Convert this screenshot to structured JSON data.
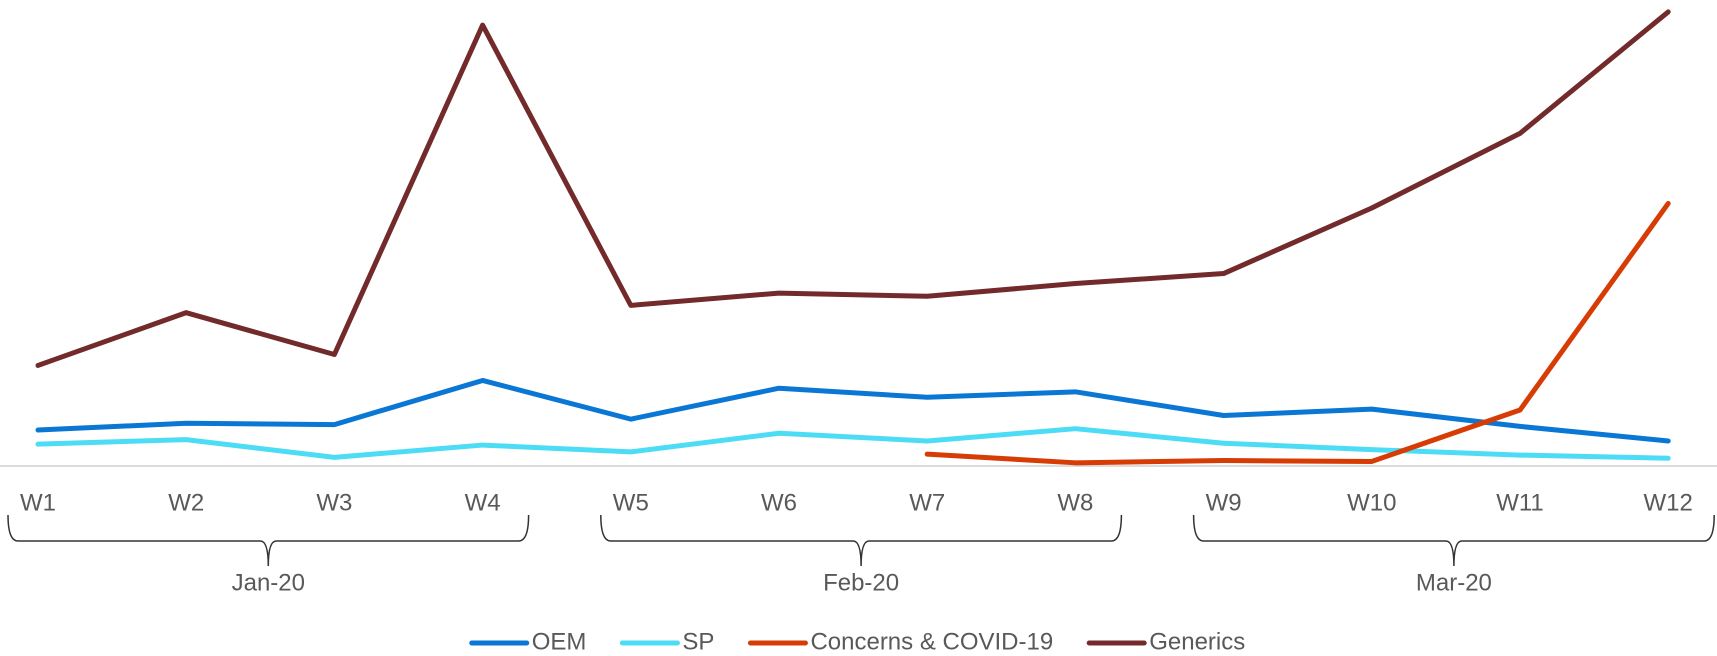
{
  "chart_data": {
    "type": "line",
    "categories": [
      "W1",
      "W2",
      "W3",
      "W4",
      "W5",
      "W6",
      "W7",
      "W8",
      "W9",
      "W10",
      "W11",
      "W12"
    ],
    "groups": [
      "Jan-20",
      "Feb-20",
      "Mar-20"
    ],
    "series": [
      {
        "name": "OEM",
        "color": "#0a77d5",
        "values": [
          7.9,
          9.4,
          9.1,
          18.8,
          10.3,
          17.1,
          15.1,
          16.3,
          11.1,
          12.5,
          8.7,
          5.5
        ]
      },
      {
        "name": "SP",
        "color": "#4ddcf5",
        "values": [
          4.8,
          5.8,
          1.9,
          4.6,
          3.1,
          7.2,
          5.5,
          8.2,
          5.0,
          3.6,
          2.4,
          1.7
        ]
      },
      {
        "name": "Concerns & COVID-19",
        "color": "#d73c05",
        "values": [
          null,
          null,
          null,
          null,
          null,
          null,
          2.6,
          0.7,
          1.2,
          1.0,
          12.3,
          57.7
        ]
      },
      {
        "name": "Generics",
        "color": "#722a2a",
        "values": [
          22.1,
          33.7,
          24.5,
          96.9,
          35.3,
          38.0,
          37.3,
          40.1,
          42.3,
          56.7,
          73.1,
          99.8
        ]
      }
    ],
    "ylim": [
      0,
      100
    ],
    "legend": "bottom"
  }
}
